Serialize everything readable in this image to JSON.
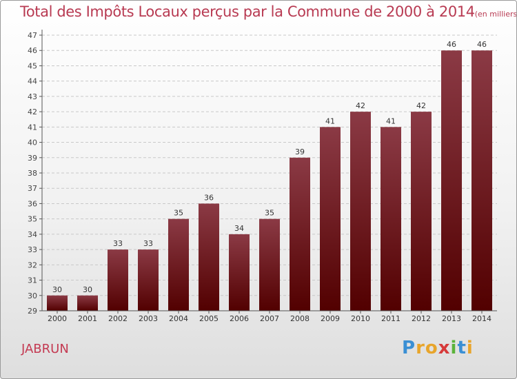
{
  "title": "Total des Impôts Locaux perçus par la Commune de 2000 à 2014",
  "title_unit": "(en milliers d'€)",
  "commune": "JABRUN",
  "logo": {
    "letters": [
      "P",
      "r",
      "o",
      "x",
      "i",
      "t",
      "i"
    ],
    "colors": [
      "#3a8fd4",
      "#e8a52b",
      "#e8a52b",
      "#d63a3a",
      "#5bb33b",
      "#3a8fd4",
      "#e8a52b"
    ]
  },
  "colors": {
    "bar_top": "#8b3a45",
    "bar_bottom": "#520000",
    "title": "#b83a52",
    "grid": "#c8c8c8"
  },
  "chart_data": {
    "type": "bar",
    "title": "Total des Impôts Locaux perçus par la Commune de 2000 à 2014",
    "xlabel": "",
    "ylabel": "",
    "ylim": [
      29,
      47
    ],
    "yticks": [
      29,
      30,
      31,
      32,
      33,
      34,
      35,
      36,
      37,
      38,
      39,
      40,
      41,
      42,
      43,
      44,
      45,
      46,
      47
    ],
    "grid": true,
    "categories": [
      "2000",
      "2001",
      "2002",
      "2003",
      "2004",
      "2005",
      "2006",
      "2007",
      "2008",
      "2009",
      "2010",
      "2011",
      "2012",
      "2013",
      "2014"
    ],
    "values": [
      30,
      30,
      33,
      33,
      35,
      36,
      34,
      35,
      39,
      41,
      42,
      41,
      42,
      46,
      46
    ]
  }
}
